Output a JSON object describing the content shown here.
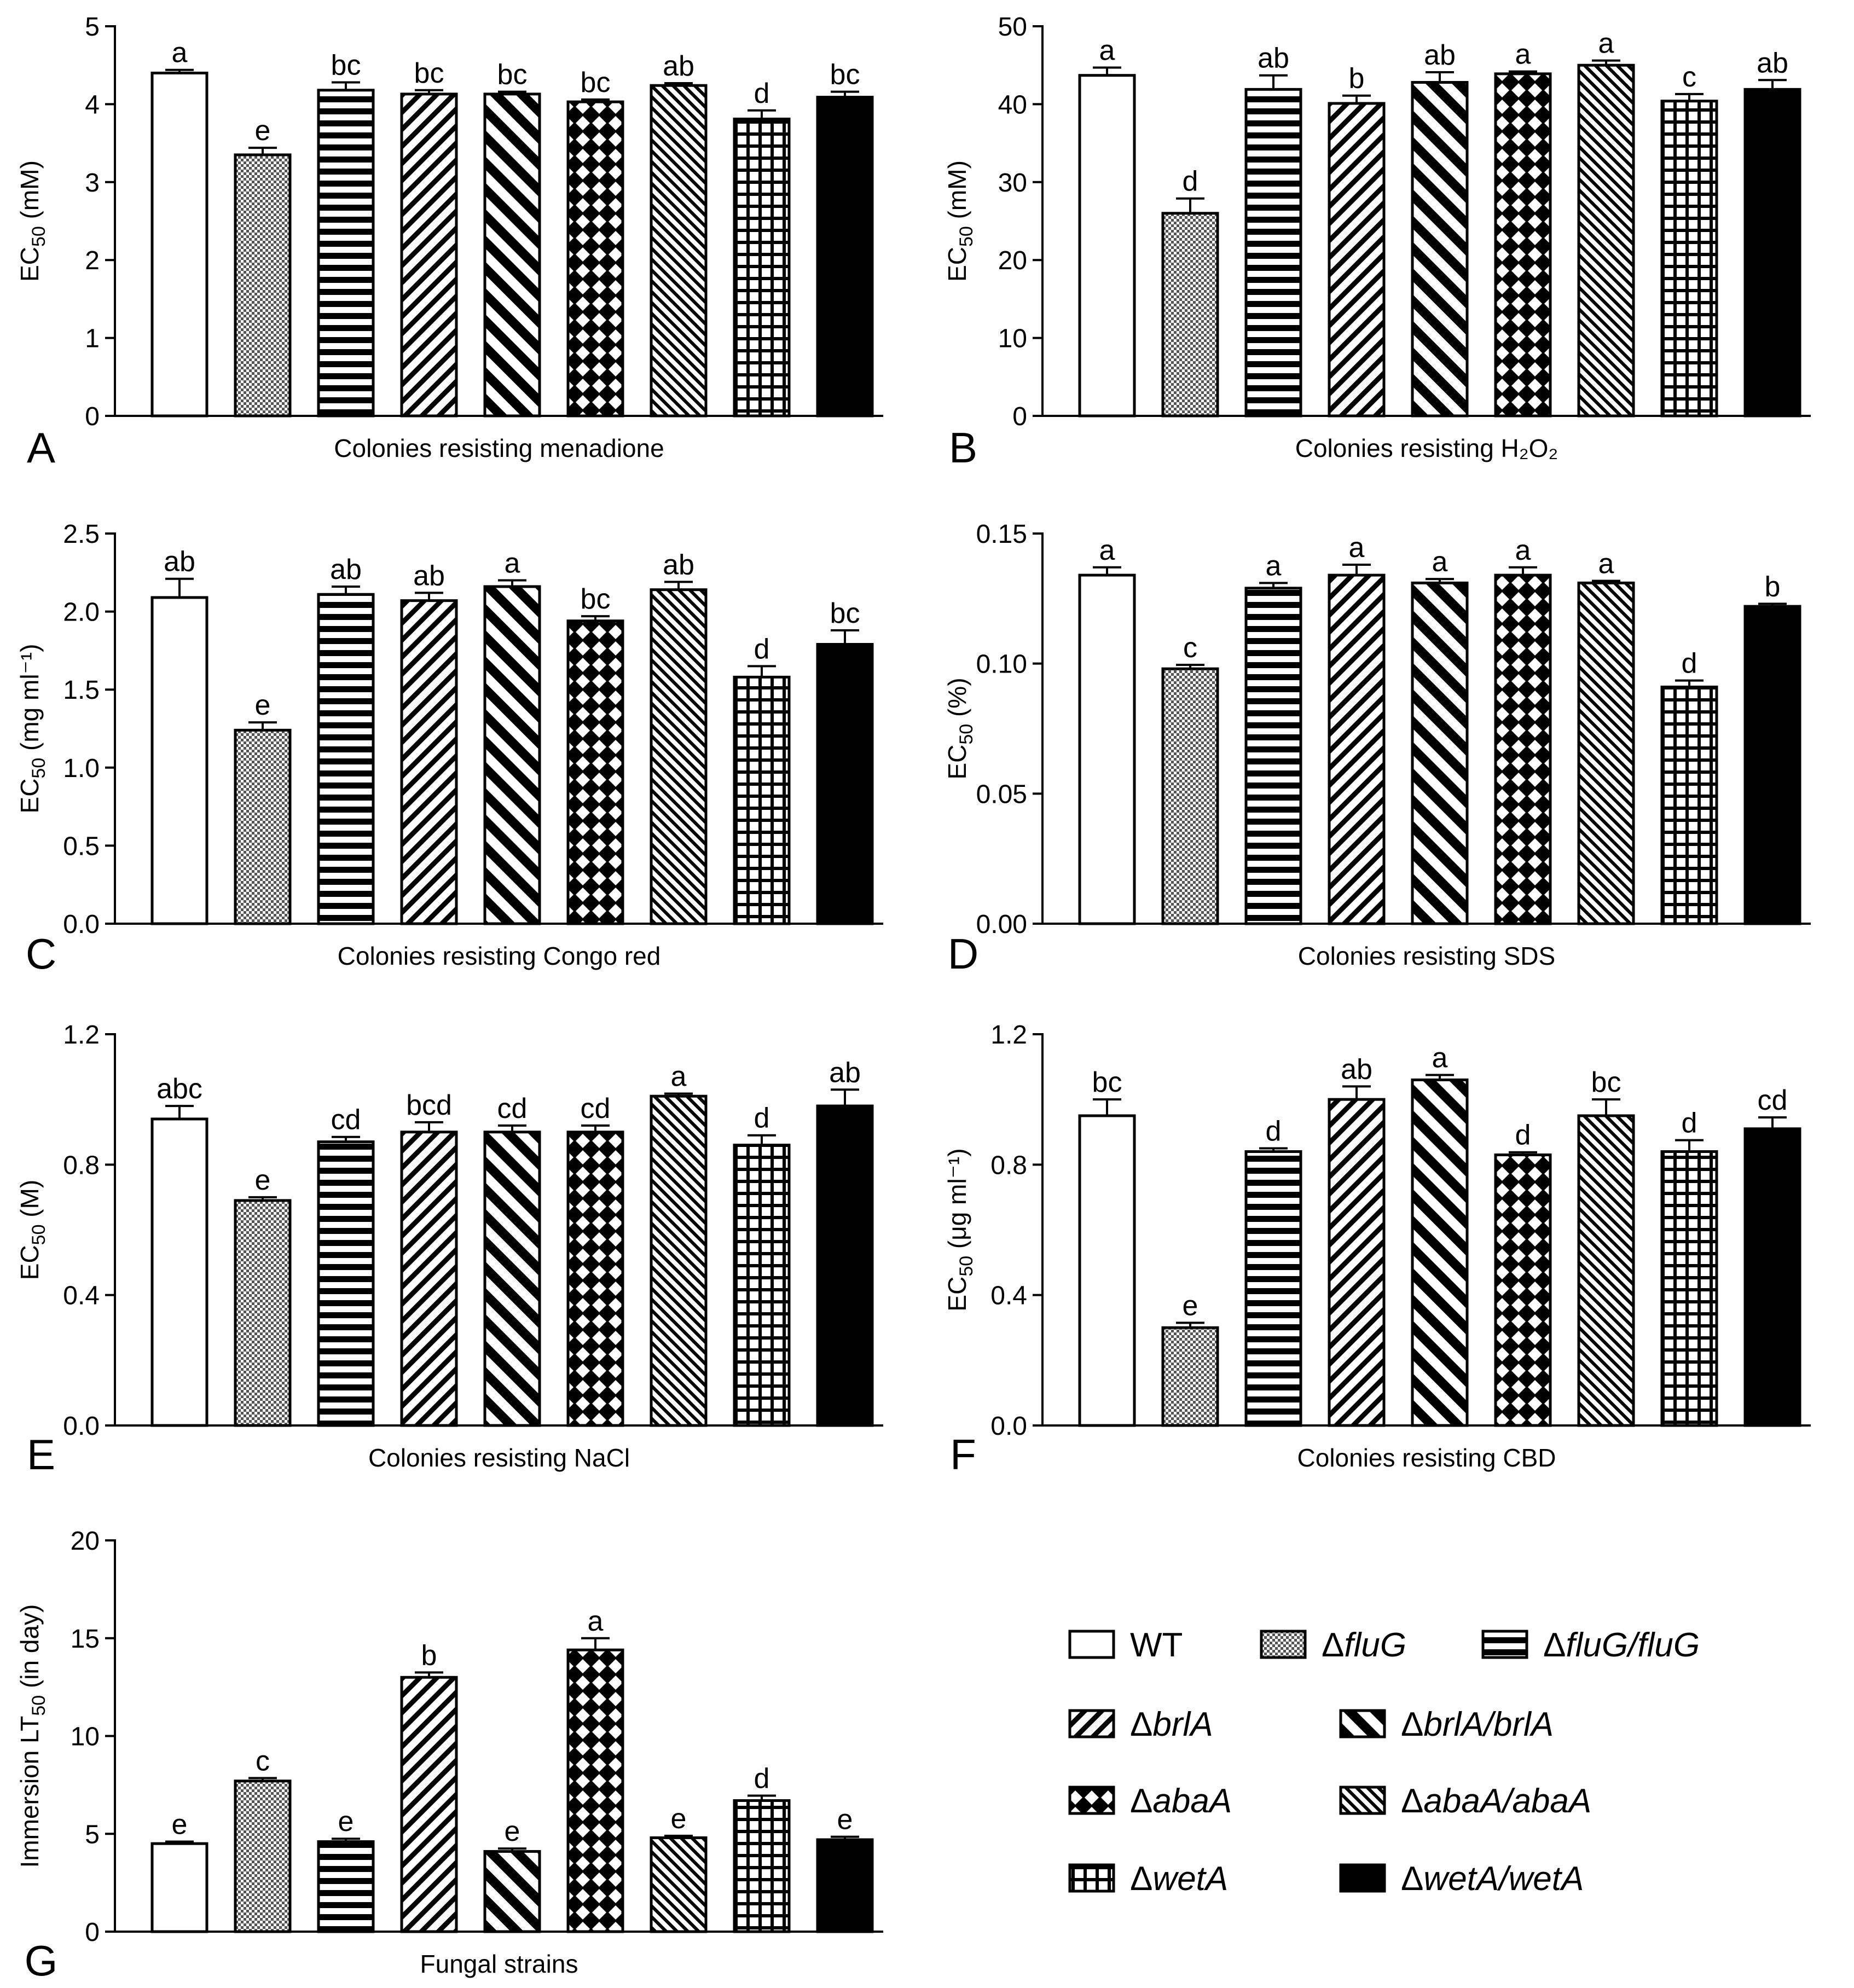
{
  "strains": [
    "WT",
    "ΔfluG",
    "ΔfluG/fluG",
    "ΔbrlA",
    "ΔbrlA/brlA",
    "ΔabaA",
    "ΔabaA/abaA",
    "ΔwetA",
    "ΔwetA/wetA"
  ],
  "legend": [
    {
      "pre": "",
      "name": "WT",
      "pattern": "white"
    },
    {
      "pre": "Δ",
      "name": "fluG",
      "pattern": "checker"
    },
    {
      "pre": "Δ",
      "name": "fluG/fluG",
      "pattern": "hlines"
    },
    {
      "pre": "Δ",
      "name": "brlA",
      "pattern": "diag-fwd"
    },
    {
      "pre": "Δ",
      "name": "brlA/brlA",
      "pattern": "diag-back"
    },
    {
      "pre": "Δ",
      "name": "abaA",
      "pattern": "crosshatch"
    },
    {
      "pre": "Δ",
      "name": "abaA/abaA",
      "pattern": "diag-back-dense"
    },
    {
      "pre": "Δ",
      "name": "wetA",
      "pattern": "grid"
    },
    {
      "pre": "Δ",
      "name": "wetA/wetA",
      "pattern": "black"
    }
  ],
  "chart_data": [
    {
      "panel": "A",
      "type": "bar",
      "title": "Colonies resisting menadione",
      "ylabel": {
        "main": "EC",
        "sub": "50",
        "rest": " (mM)"
      },
      "ylim": [
        0,
        5
      ],
      "ticks": [
        "0",
        "1",
        "2",
        "3",
        "4",
        "5"
      ],
      "values": [
        4.4,
        3.35,
        4.18,
        4.13,
        4.13,
        4.03,
        4.24,
        3.81,
        4.09
      ],
      "errors": [
        0.04,
        0.09,
        0.1,
        0.05,
        0.03,
        0.03,
        0.03,
        0.11,
        0.07
      ],
      "letters": [
        "a",
        "e",
        "bc",
        "bc",
        "bc",
        "bc",
        "ab",
        "d",
        "bc"
      ]
    },
    {
      "panel": "B",
      "type": "bar",
      "title": "Colonies resisting H₂O₂",
      "ylabel": {
        "main": "EC",
        "sub": "50",
        "rest": " (mM)"
      },
      "ylim": [
        0,
        50
      ],
      "ticks": [
        "0",
        "10",
        "20",
        "30",
        "40",
        "50"
      ],
      "values": [
        43.7,
        26.0,
        41.9,
        40.1,
        42.8,
        43.9,
        45.0,
        40.4,
        41.9
      ],
      "errors": [
        1.0,
        1.9,
        1.8,
        1.0,
        1.3,
        0.3,
        0.6,
        0.9,
        1.2
      ],
      "letters": [
        "a",
        "d",
        "ab",
        "b",
        "ab",
        "a",
        "a",
        "c",
        "ab"
      ]
    },
    {
      "panel": "C",
      "type": "bar",
      "title": "Colonies resisting Congo red",
      "ylabel": {
        "main": "EC",
        "sub": "50",
        "rest": " (mg ml⁻¹)"
      },
      "ylim": [
        0,
        2.5
      ],
      "ticks": [
        "0.0",
        "0.5",
        "1.0",
        "1.5",
        "2.0",
        "2.5"
      ],
      "values": [
        2.09,
        1.24,
        2.11,
        2.07,
        2.16,
        1.94,
        2.14,
        1.58,
        1.79
      ],
      "errors": [
        0.12,
        0.05,
        0.05,
        0.05,
        0.04,
        0.03,
        0.05,
        0.07,
        0.09
      ],
      "letters": [
        "ab",
        "e",
        "ab",
        "ab",
        "a",
        "bc",
        "ab",
        "d",
        "bc"
      ]
    },
    {
      "panel": "D",
      "type": "bar",
      "title": "Colonies resisting SDS",
      "ylabel": {
        "main": "EC",
        "sub": "50",
        "rest": " (%)"
      },
      "ylim": [
        0,
        0.15
      ],
      "ticks": [
        "0.00",
        "0.05",
        "0.10",
        "0.15"
      ],
      "values": [
        0.134,
        0.098,
        0.129,
        0.134,
        0.131,
        0.134,
        0.131,
        0.091,
        0.122
      ],
      "errors": [
        0.003,
        0.0015,
        0.002,
        0.004,
        0.0015,
        0.003,
        0.0008,
        0.0025,
        0.001
      ],
      "letters": [
        "a",
        "c",
        "a",
        "a",
        "a",
        "a",
        "a",
        "d",
        "b"
      ]
    },
    {
      "panel": "E",
      "type": "bar",
      "title": "Colonies resisting NaCl",
      "ylabel": {
        "main": "EC",
        "sub": "50",
        "rest": " (M)"
      },
      "ylim": [
        0,
        1.2
      ],
      "ticks": [
        "0.0",
        "0.4",
        "0.8",
        "1.2"
      ],
      "values": [
        0.94,
        0.69,
        0.87,
        0.9,
        0.9,
        0.9,
        1.01,
        0.86,
        0.98
      ],
      "errors": [
        0.04,
        0.01,
        0.015,
        0.03,
        0.02,
        0.02,
        0.008,
        0.03,
        0.05
      ],
      "letters": [
        "abc",
        "e",
        "cd",
        "bcd",
        "cd",
        "cd",
        "a",
        "d",
        "ab"
      ]
    },
    {
      "panel": "F",
      "type": "bar",
      "title": "Colonies resisting CBD",
      "ylabel": {
        "main": "EC",
        "sub": "50",
        "rest": " (μg ml⁻¹)"
      },
      "ylim": [
        0,
        1.2
      ],
      "ticks": [
        "0.0",
        "0.4",
        "0.8",
        "1.2"
      ],
      "values": [
        0.95,
        0.3,
        0.84,
        1.0,
        1.06,
        0.83,
        0.95,
        0.84,
        0.91
      ],
      "errors": [
        0.05,
        0.015,
        0.01,
        0.04,
        0.015,
        0.008,
        0.05,
        0.035,
        0.035
      ],
      "letters": [
        "bc",
        "e",
        "d",
        "ab",
        "a",
        "d",
        "bc",
        "d",
        "cd"
      ]
    },
    {
      "panel": "G",
      "type": "bar",
      "title": "Fungal strains",
      "ylabel": {
        "main": "Immersion LT",
        "sub": "50",
        "rest": " (in day)"
      },
      "ylim": [
        0,
        20
      ],
      "ticks": [
        "0",
        "5",
        "10",
        "15",
        "20"
      ],
      "values": [
        4.5,
        7.7,
        4.6,
        13.0,
        4.1,
        14.4,
        4.8,
        6.7,
        4.7
      ],
      "errors": [
        0.1,
        0.15,
        0.15,
        0.25,
        0.15,
        0.6,
        0.1,
        0.25,
        0.15
      ],
      "letters": [
        "e",
        "c",
        "e",
        "b",
        "e",
        "a",
        "e",
        "d",
        "e"
      ]
    }
  ]
}
